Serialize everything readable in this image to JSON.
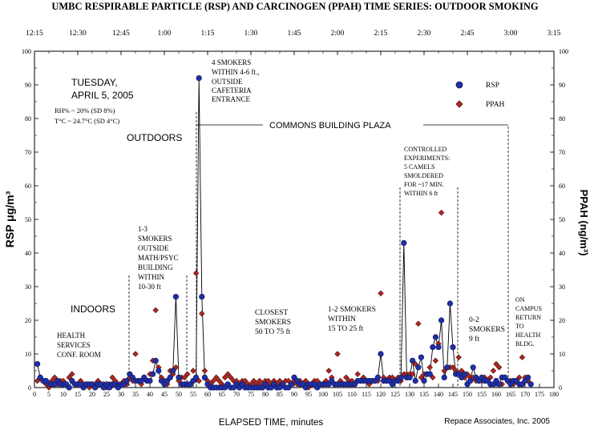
{
  "chart_data": {
    "type": "scatter",
    "title": "UMBC RESPIRABLE PARTICLE (RSP) AND CARCINOGEN (PPAH) TIME SERIES:  OUTDOOR SMOKING",
    "xlabel": "ELAPSED TIME, minutes",
    "ylabel": "RSP μg/m³",
    "ylabel_right": "PPAH (ng/m³)",
    "credit": "Repace Associates, Inc. 2005",
    "xlim": [
      0,
      180
    ],
    "ylim": [
      0,
      100
    ],
    "x_ticks": [
      0,
      5,
      10,
      15,
      20,
      25,
      30,
      35,
      40,
      45,
      50,
      55,
      60,
      65,
      70,
      75,
      80,
      85,
      90,
      95,
      100,
      105,
      110,
      115,
      120,
      125,
      130,
      135,
      140,
      145,
      150,
      155,
      160,
      165,
      170,
      175,
      180
    ],
    "y_ticks": [
      0,
      10,
      20,
      30,
      40,
      50,
      60,
      70,
      80,
      90,
      100
    ],
    "top_ticks": [
      {
        "label": "12:15",
        "x": 0
      },
      {
        "label": "12:30",
        "x": 15
      },
      {
        "label": "12:45",
        "x": 30
      },
      {
        "label": "1:00",
        "x": 45
      },
      {
        "label": "1:15",
        "x": 60
      },
      {
        "label": "1:30",
        "x": 75
      },
      {
        "label": "1:45",
        "x": 90
      },
      {
        "label": "2:00",
        "x": 105
      },
      {
        "label": "2:15",
        "x": 120
      },
      {
        "label": "2:30",
        "x": 135
      },
      {
        "label": "2:45",
        "x": 150
      },
      {
        "label": "3:00",
        "x": 165
      },
      {
        "label": "3:15",
        "x": 180
      }
    ],
    "legend": [
      {
        "name": "RSP",
        "marker": "circle",
        "color": "#1f2fa8"
      },
      {
        "name": "PPAH",
        "marker": "diamond",
        "color": "#b3261e"
      }
    ],
    "series": [
      {
        "name": "RSP",
        "marker": "circle",
        "color": "#1f2fa8",
        "line": true,
        "x": [
          1,
          2,
          3,
          4,
          5,
          6,
          7,
          8,
          9,
          10,
          11,
          12,
          13,
          14,
          15,
          16,
          17,
          18,
          19,
          20,
          21,
          22,
          23,
          24,
          25,
          26,
          27,
          28,
          29,
          30,
          31,
          32,
          33,
          34,
          35,
          36,
          37,
          38,
          39,
          40,
          41,
          42,
          43,
          44,
          45,
          46,
          47,
          48,
          49,
          50,
          51,
          52,
          53,
          54,
          55,
          56,
          57,
          58,
          59,
          60,
          61,
          62,
          63,
          64,
          65,
          66,
          67,
          68,
          69,
          70,
          71,
          72,
          73,
          74,
          75,
          76,
          77,
          78,
          79,
          80,
          81,
          82,
          83,
          84,
          85,
          86,
          87,
          88,
          89,
          90,
          91,
          92,
          93,
          94,
          95,
          96,
          97,
          98,
          99,
          100,
          101,
          102,
          103,
          104,
          105,
          106,
          107,
          108,
          109,
          110,
          111,
          112,
          113,
          114,
          115,
          116,
          117,
          118,
          119,
          120,
          121,
          122,
          123,
          124,
          125,
          126,
          127,
          128,
          129,
          130,
          131,
          132,
          133,
          134,
          135,
          136,
          137,
          138,
          139,
          140,
          141,
          142,
          143,
          144,
          145,
          146,
          147,
          148,
          149,
          150,
          151,
          152,
          153,
          154,
          155,
          156,
          157,
          158,
          159,
          160,
          161,
          162,
          163,
          164,
          165,
          166,
          167,
          168,
          169,
          170,
          171,
          172
        ],
        "y": [
          7,
          3,
          2,
          2,
          1,
          1,
          1,
          2,
          1,
          1,
          1,
          0,
          2,
          1,
          1,
          1,
          0,
          1,
          1,
          1,
          0,
          1,
          1,
          0,
          1,
          0,
          1,
          1,
          0,
          1,
          1,
          2,
          4,
          3,
          2,
          2,
          2,
          3,
          2,
          2,
          4,
          8,
          5,
          2,
          1,
          2,
          3,
          5,
          27,
          3,
          1,
          1,
          1,
          1,
          2,
          3,
          92,
          27,
          3,
          1,
          0,
          0,
          0,
          0,
          0,
          0,
          1,
          0,
          0,
          1,
          0,
          1,
          0,
          0,
          0,
          0,
          0,
          0,
          0,
          1,
          0,
          0,
          1,
          0,
          0,
          1,
          0,
          0,
          1,
          3,
          2,
          1,
          1,
          0,
          1,
          1,
          1,
          0,
          1,
          1,
          1,
          1,
          2,
          1,
          1,
          1,
          1,
          1,
          1,
          1,
          1,
          2,
          2,
          2,
          2,
          2,
          2,
          2,
          3,
          10,
          2,
          2,
          2,
          1,
          2,
          2,
          3,
          43,
          3,
          3,
          8,
          2,
          6,
          9,
          2,
          4,
          4,
          12,
          15,
          12,
          20,
          3,
          6,
          25,
          12,
          4,
          4,
          3,
          4,
          1,
          2,
          6,
          3,
          2,
          3,
          2,
          2,
          1,
          1,
          2,
          1,
          3,
          3,
          2,
          1,
          2,
          2,
          1,
          1,
          2,
          3,
          1
        ]
      },
      {
        "name": "PPAH",
        "marker": "diamond",
        "color": "#b3261e",
        "line": false,
        "x": [
          1,
          2,
          3,
          4,
          5,
          6,
          7,
          8,
          9,
          10,
          11,
          12,
          13,
          14,
          15,
          16,
          17,
          18,
          19,
          20,
          21,
          22,
          23,
          24,
          25,
          26,
          27,
          28,
          29,
          30,
          31,
          32,
          33,
          34,
          35,
          36,
          37,
          38,
          39,
          40,
          41,
          42,
          43,
          44,
          45,
          46,
          47,
          48,
          49,
          50,
          51,
          52,
          53,
          54,
          55,
          56,
          57,
          58,
          59,
          60,
          61,
          62,
          63,
          64,
          65,
          66,
          67,
          68,
          69,
          70,
          71,
          72,
          73,
          74,
          75,
          76,
          77,
          78,
          79,
          80,
          81,
          82,
          83,
          84,
          85,
          86,
          87,
          88,
          89,
          90,
          91,
          92,
          93,
          94,
          95,
          96,
          97,
          98,
          99,
          100,
          101,
          102,
          103,
          104,
          105,
          106,
          107,
          108,
          109,
          110,
          111,
          112,
          113,
          114,
          115,
          116,
          117,
          118,
          119,
          120,
          121,
          122,
          123,
          124,
          125,
          126,
          127,
          128,
          129,
          130,
          131,
          132,
          133,
          134,
          135,
          136,
          137,
          138,
          139,
          140,
          141,
          142,
          143,
          144,
          145,
          146,
          147,
          148,
          149,
          150,
          151,
          152,
          153,
          154,
          155,
          156,
          157,
          158,
          159,
          160,
          161,
          162,
          163,
          164,
          165,
          166,
          167,
          168,
          169,
          170,
          171,
          172
        ],
        "y": [
          2,
          3,
          2,
          1,
          0,
          2,
          3,
          1,
          2,
          2,
          1,
          3,
          4,
          1,
          1,
          2,
          1,
          1,
          0,
          1,
          1,
          2,
          1,
          1,
          0,
          1,
          3,
          2,
          1,
          1,
          2,
          1,
          3,
          2,
          10,
          2,
          1,
          3,
          2,
          4,
          8,
          23,
          6,
          3,
          2,
          1,
          5,
          4,
          6,
          2,
          3,
          3,
          4,
          1,
          5,
          34,
          2,
          22,
          5,
          2,
          1,
          2,
          3,
          2,
          1,
          3,
          4,
          3,
          2,
          2,
          1,
          2,
          2,
          1,
          1,
          2,
          1,
          2,
          1,
          2,
          2,
          1,
          2,
          1,
          2,
          1,
          2,
          2,
          1,
          2,
          1,
          2,
          1,
          2,
          0,
          1,
          2,
          2,
          1,
          1,
          2,
          5,
          3,
          1,
          10,
          2,
          1,
          3,
          2,
          2,
          1,
          4,
          2,
          3,
          2,
          1,
          2,
          2,
          2,
          28,
          3,
          2,
          3,
          3,
          2,
          3,
          2,
          4,
          4,
          4,
          4,
          7,
          19,
          3,
          4,
          4,
          6,
          3,
          8,
          13,
          52,
          5,
          6,
          6,
          6,
          5,
          9,
          5,
          3,
          4,
          3,
          3,
          2,
          2,
          2,
          3,
          2,
          3,
          5,
          7,
          6,
          1,
          3,
          2,
          2,
          1,
          2,
          3,
          9,
          3,
          2,
          1
        ]
      }
    ],
    "annotations": {
      "date_line1": "TUESDAY,",
      "date_line2": "APRIL 5, 2005",
      "rh": "RH% ~ 20% (SD 8%)",
      "temp": "T°C ~ 24.7°C (SD 4°C)",
      "outdoors": "OUTDOORS",
      "indoors": "INDOORS",
      "health": [
        "HEALTH",
        "SERVICES",
        "CONF. ROOM"
      ],
      "math": [
        "1-3",
        "SMOKERS",
        "OUTSIDE",
        "MATH/PSYC",
        "BUILDING",
        "WITHIN",
        "10-30 ft"
      ],
      "cafeteria": [
        "4 SMOKERS",
        "WITHIN 4-6 ft.,",
        "OUTSIDE",
        "CAFETERIA",
        "ENTRANCE"
      ],
      "commons": "COMMONS BUILDING PLAZA",
      "closest": [
        "CLOSEST",
        "SMOKERS",
        "50 TO 75 ft"
      ],
      "onetwo": [
        "1-2 SMOKERS",
        "WITHIN",
        "15 TO 25 ft"
      ],
      "controlled": [
        "CONTROLLED",
        "EXPERIMENTS:",
        "5 CAMELS",
        "SMOLDERED",
        "FOR ~17 MIN.",
        "WITHIN 6 ft"
      ],
      "zerotwo": [
        "0-2",
        "SMOKERS",
        "9  ft"
      ],
      "oncampus": [
        "ON",
        "CAMPUS",
        "RETURN",
        "TO",
        "HEALTH",
        "BLDG."
      ]
    }
  }
}
